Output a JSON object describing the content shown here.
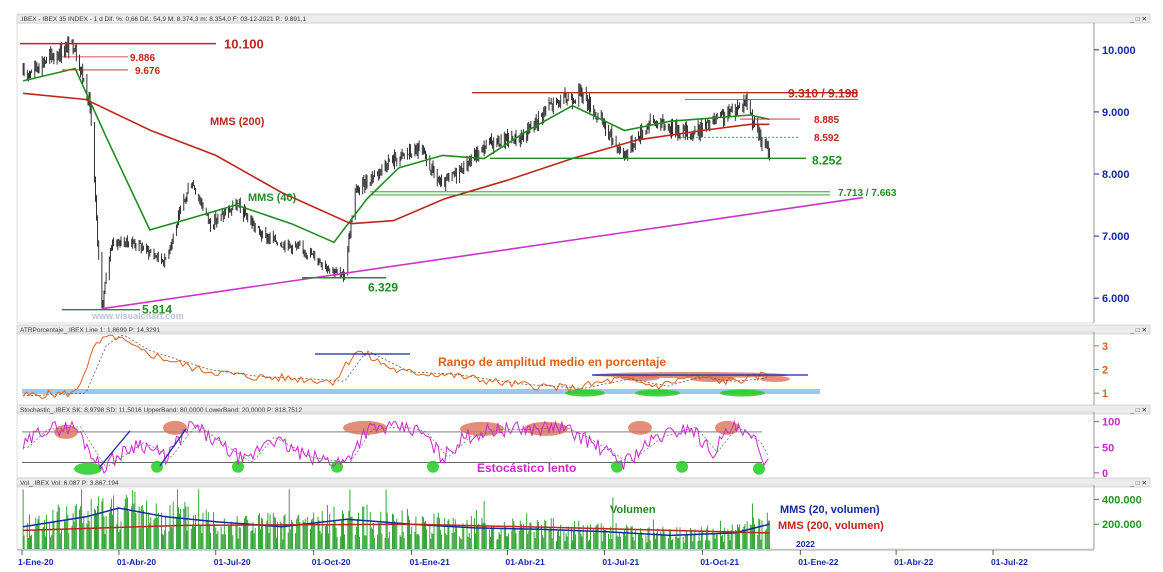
{
  "colors": {
    "price": "#1a1a1a",
    "mms40": "#1f8c1f",
    "mms200": "#c0241c",
    "trend": "#cc33cc",
    "axis_blue": "#1428a8",
    "atr_orange": "#e0601a",
    "stoch_magenta": "#cc2acc",
    "vol_green": "#1f9a1f",
    "vol_navy": "#1428a8",
    "annot_red": "#c0241c",
    "annot_green": "#1f8c1f",
    "bar_blue": "#1428a8",
    "highlight_red": "#d9735a",
    "highlight_green": "#22cc22",
    "light_blue_band": "#9cc8ee"
  },
  "header": {
    "main": ".IBEX - IBEX 35 INDEX - 1 d  Dif. %: 0,66  Dif.: 54,9  M: 8.374,3  m: 8.354,0  F: 03-12-2021  P.: 9.891,1",
    "atr": "ATRPorcentaje_.IBEX  Line 1: 1,8699  P: 14,3291",
    "stoch": "Stochastic_.IBEX  SK: 8,9798  SD: 11,5016  UpperBand: 80,0000  LowerBand: 20,0000  P: 818,7512",
    "vol": "Vol_.IBEX  Vol: 6.087  P: 3.867.194",
    "window_controls": "_ □ ✕"
  },
  "watermark": "www.visualchart.com",
  "chart_data": [
    {
      "type": "line",
      "panel": "price",
      "title": ".IBEX - IBEX 35 INDEX",
      "xlabel": "",
      "ylabel": "",
      "ylim": [
        5600,
        10400
      ],
      "y_ticks": [
        "6.000",
        "7.000",
        "8.000",
        "9.000",
        "10.000"
      ],
      "x_ticks": [
        "1-Ene-20",
        "01-Abr-20",
        "01-Jul-20",
        "01-Oct-20",
        "01-Ene-21",
        "01-Abr-21",
        "01-Jul-21",
        "01-Oct-21",
        "01-Ene-22",
        "01-Abr-22",
        "01-Jul-22"
      ],
      "x_tick_dates": [
        "2020-01-01",
        "2020-04-01",
        "2020-07-01",
        "2020-10-01",
        "2021-01-01",
        "2021-04-01",
        "2021-07-01",
        "2021-10-01",
        "2022-01-01",
        "2022-04-01",
        "2022-07-01"
      ],
      "year_label": "2022",
      "series": [
        {
          "name": "IBEX",
          "x": [
            "2020-01-02",
            "2020-01-20",
            "2020-02-19",
            "2020-03-05",
            "2020-03-12",
            "2020-03-16",
            "2020-03-25",
            "2020-04-15",
            "2020-05-14",
            "2020-06-08",
            "2020-06-26",
            "2020-07-21",
            "2020-08-14",
            "2020-09-25",
            "2020-10-29",
            "2020-11-09",
            "2020-12-10",
            "2021-01-08",
            "2021-01-29",
            "2021-03-15",
            "2021-04-16",
            "2021-05-10",
            "2021-06-10",
            "2021-07-19",
            "2021-08-13",
            "2021-09-21",
            "2021-10-29",
            "2021-11-11",
            "2021-11-18",
            "2021-11-26",
            "2021-12-03"
          ],
          "values": [
            9600,
            9800,
            10100,
            9100,
            6900,
            5850,
            6900,
            6900,
            6600,
            7900,
            7200,
            7500,
            7000,
            6750,
            6330,
            7700,
            8200,
            8400,
            7800,
            8500,
            8600,
            9100,
            9300,
            8300,
            8850,
            8650,
            9000,
            9200,
            8850,
            8500,
            8350
          ]
        },
        {
          "name": "MMS (40)",
          "x": [
            "2020-01-02",
            "2020-02-20",
            "2020-03-20",
            "2020-04-30",
            "2020-06-10",
            "2020-07-20",
            "2020-09-10",
            "2020-10-20",
            "2020-11-20",
            "2020-12-20",
            "2021-01-30",
            "2021-03-10",
            "2021-04-20",
            "2021-06-01",
            "2021-07-20",
            "2021-09-01",
            "2021-10-10",
            "2021-11-15",
            "2021-12-03"
          ],
          "values": [
            9500,
            9700,
            8600,
            7100,
            7300,
            7500,
            7200,
            6900,
            7600,
            8100,
            8300,
            8250,
            8700,
            9100,
            8700,
            8850,
            8900,
            8950,
            8880
          ]
        },
        {
          "name": "MMS (200)",
          "x": [
            "2020-01-02",
            "2020-03-01",
            "2020-05-01",
            "2020-07-01",
            "2020-09-01",
            "2020-11-05",
            "2020-12-15",
            "2021-02-01",
            "2021-04-01",
            "2021-06-01",
            "2021-08-01",
            "2021-10-01",
            "2021-11-15",
            "2021-12-03"
          ],
          "values": [
            9300,
            9200,
            8700,
            8300,
            7700,
            7200,
            7250,
            7600,
            7900,
            8250,
            8550,
            8700,
            8800,
            8800
          ]
        },
        {
          "name": "Trend line",
          "x": [
            "2020-03-16",
            "2022-03-01"
          ],
          "values": [
            5830,
            7620
          ]
        }
      ],
      "annotations": [
        {
          "text": "10.100",
          "value": 10100,
          "color": "annot_red"
        },
        {
          "text": "9.886",
          "value": 9886,
          "color": "annot_red"
        },
        {
          "text": "9.676",
          "value": 9676,
          "color": "annot_red"
        },
        {
          "text": "9.310 / 9.198",
          "value": 9310,
          "color": "annot_red"
        },
        {
          "text": "8.885",
          "value": 8885,
          "color": "annot_red"
        },
        {
          "text": "8.592",
          "value": 8592,
          "color": "annot_red"
        },
        {
          "text": "8.252",
          "value": 8252,
          "color": "annot_green"
        },
        {
          "text": "7.713 / 7.663",
          "value": 7713,
          "color": "annot_green"
        },
        {
          "text": "6.329",
          "value": 6329,
          "color": "annot_green"
        },
        {
          "text": "5.814",
          "value": 5814,
          "color": "annot_green"
        },
        {
          "text": "MMS (200)",
          "color": "annot_red"
        },
        {
          "text": "MMS (40)",
          "color": "annot_green"
        }
      ]
    },
    {
      "type": "line",
      "panel": "atr",
      "title": "ATRPorcentaje_.IBEX",
      "ylim": [
        0.5,
        3.5
      ],
      "y_ticks": [
        "1",
        "2",
        "3"
      ],
      "series": [
        {
          "name": "ATR %",
          "x": [
            "2020-01-02",
            "2020-02-20",
            "2020-03-10",
            "2020-03-25",
            "2020-04-20",
            "2020-06-15",
            "2020-08-01",
            "2020-09-20",
            "2020-10-20",
            "2020-11-10",
            "2020-12-20",
            "2021-02-01",
            "2021-04-01",
            "2021-06-01",
            "2021-07-15",
            "2021-08-20",
            "2021-09-20",
            "2021-10-20",
            "2021-11-15",
            "2021-12-03"
          ],
          "values": [
            0.9,
            1.0,
            3.0,
            3.5,
            2.8,
            2.0,
            1.7,
            1.6,
            1.5,
            2.8,
            1.9,
            1.8,
            1.4,
            1.2,
            1.6,
            1.3,
            1.7,
            1.5,
            1.6,
            1.87
          ]
        }
      ],
      "annotations": [
        {
          "text": "Rango de amplitud medio en porcentaje"
        }
      ]
    },
    {
      "type": "line",
      "panel": "stochastic",
      "title": "Stochastic_.IBEX",
      "ylim": [
        -10,
        115
      ],
      "y_ticks": [
        "0",
        "50",
        "100"
      ],
      "bands": [
        20,
        80
      ],
      "series": [
        {
          "name": "SK",
          "x": [
            "2020-01-02",
            "2020-01-20",
            "2020-02-20",
            "2020-03-15",
            "2020-04-20",
            "2020-05-15",
            "2020-06-08",
            "2020-07-01",
            "2020-07-30",
            "2020-08-20",
            "2020-09-25",
            "2020-10-30",
            "2020-11-20",
            "2020-12-20",
            "2021-01-10",
            "2021-01-30",
            "2021-02-20",
            "2021-03-20",
            "2021-04-20",
            "2021-05-20",
            "2021-06-10",
            "2021-07-19",
            "2021-08-20",
            "2021-09-20",
            "2021-10-10",
            "2021-10-29",
            "2021-11-20",
            "2021-12-03"
          ],
          "values": [
            50,
            85,
            90,
            10,
            60,
            30,
            95,
            60,
            20,
            70,
            30,
            20,
            85,
            90,
            80,
            30,
            70,
            85,
            85,
            90,
            70,
            20,
            70,
            90,
            40,
            90,
            60,
            8.98
          ]
        }
      ],
      "annotations": [
        {
          "text": "Estocástico lento"
        }
      ]
    },
    {
      "type": "bar",
      "panel": "volume",
      "title": "Vol_.IBEX",
      "ylim": [
        0,
        500000
      ],
      "y_ticks": [
        "200.000",
        "400.000"
      ],
      "series": [
        {
          "name": "MMS (20, volumen)",
          "x": [
            "2020-01-02",
            "2020-03-01",
            "2020-04-01",
            "2020-05-15",
            "2020-07-01",
            "2020-09-01",
            "2020-11-01",
            "2021-01-01",
            "2021-03-01",
            "2021-05-01",
            "2021-07-01",
            "2021-09-01",
            "2021-11-01",
            "2021-12-03"
          ],
          "values": [
            180000,
            260000,
            330000,
            260000,
            220000,
            180000,
            240000,
            200000,
            170000,
            160000,
            140000,
            110000,
            130000,
            200000
          ]
        },
        {
          "name": "MMS (200, volumen)",
          "x": [
            "2020-01-02",
            "2020-06-01",
            "2021-01-01",
            "2021-06-01",
            "2021-12-03"
          ],
          "values": [
            150000,
            190000,
            200000,
            170000,
            130000
          ]
        }
      ],
      "annotations": [
        {
          "text": "Volumen"
        }
      ]
    }
  ]
}
